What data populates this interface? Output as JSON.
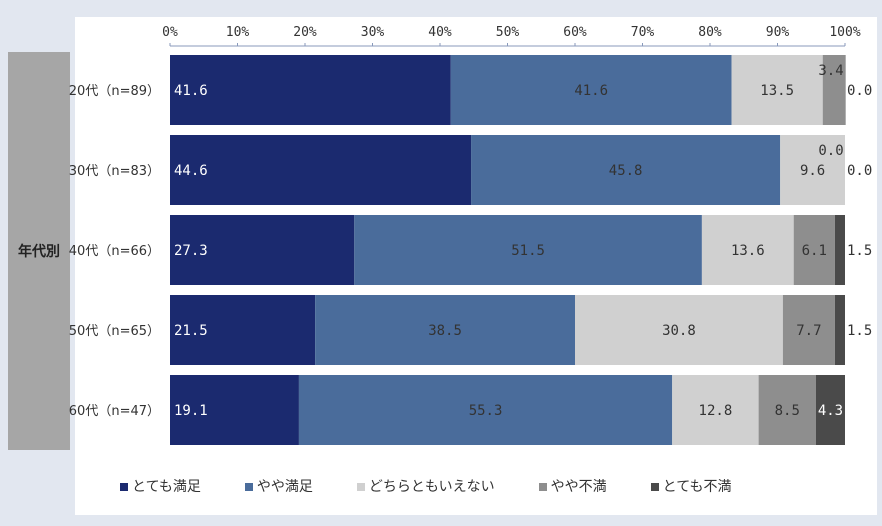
{
  "chart_data": {
    "type": "bar",
    "orientation": "horizontal-stacked-100",
    "group_label": "年代別",
    "categories": [
      "20代(n=89)",
      "30代(n=83)",
      "40代(n=66)",
      "50代(n=65)",
      "60代(n=47)"
    ],
    "xticks": [
      "0%",
      "10%",
      "20%",
      "30%",
      "40%",
      "50%",
      "60%",
      "70%",
      "80%",
      "90%",
      "100%"
    ],
    "xlim": [
      0,
      100
    ],
    "legend_position": "bottom",
    "series": [
      {
        "name": "とても満足",
        "color": "#1b2a6f",
        "label_color": "#ffffff",
        "values": [
          41.6,
          44.6,
          27.3,
          21.5,
          19.1
        ]
      },
      {
        "name": "やや満足",
        "color": "#4a6c9b",
        "label_color": "#333333",
        "values": [
          41.6,
          45.8,
          51.5,
          38.5,
          55.3
        ]
      },
      {
        "name": "どちらともいえない",
        "color": "#d0d0d0",
        "label_color": "#333333",
        "values": [
          13.5,
          9.6,
          13.6,
          30.8,
          12.8
        ]
      },
      {
        "name": "やや不満",
        "color": "#8e8e8e",
        "label_color": "#333333",
        "values": [
          3.4,
          0.0,
          6.1,
          7.7,
          8.5
        ]
      },
      {
        "name": "とても不満",
        "color": "#4a4a4a",
        "label_color": "#ffffff",
        "values": [
          0.0,
          0.0,
          1.5,
          1.5,
          4.3
        ]
      }
    ]
  }
}
